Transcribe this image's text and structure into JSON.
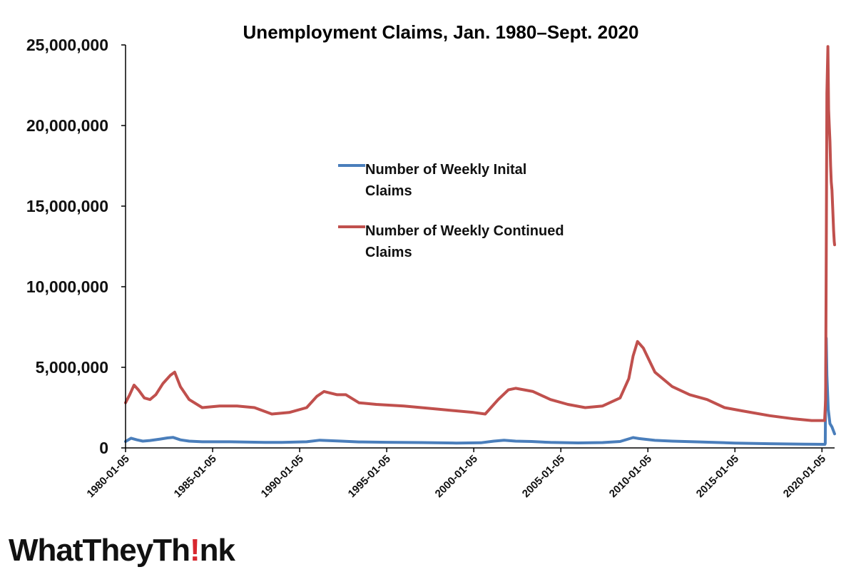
{
  "logo": {
    "text_before": "WhatTheyTh",
    "bang": "!",
    "text_after": "nk",
    "accent_color": "#d8272e"
  },
  "chart_data": {
    "type": "line",
    "title": "Unemployment Claims, Jan. 1980–Sept. 2020",
    "xlabel": "",
    "ylabel": "",
    "ylim": [
      0,
      25000000
    ],
    "yticks": [
      0,
      5000000,
      10000000,
      15000000,
      20000000,
      25000000
    ],
    "ytick_labels": [
      "0",
      "5,000,000",
      "10,000,000",
      "15,000,000",
      "20,000,000",
      "25,000,000"
    ],
    "xlim": [
      "1980-01-05",
      "2020-09-26"
    ],
    "xtick_labels": [
      "1980-01-05",
      "1985-01-05",
      "1990-01-05",
      "1995-01-05",
      "2000-01-05",
      "2005-01-05",
      "2010-01-05",
      "2015-01-05",
      "2020-01-05"
    ],
    "grid": false,
    "legend_position": "upper-center",
    "series": [
      {
        "name": "Number of Weekly Inital Claims",
        "legend_lines": [
          "Number of Weekly Inital",
          "Claims"
        ],
        "color": "#4a7ebb",
        "x": [
          "1980-01-05",
          "1980-05-01",
          "1980-09-01",
          "1981-01-01",
          "1981-06-01",
          "1982-01-01",
          "1982-06-01",
          "1982-10-01",
          "1983-03-01",
          "1983-09-01",
          "1984-06-01",
          "1986-01-01",
          "1988-01-01",
          "1989-01-01",
          "1990-06-01",
          "1991-03-01",
          "1991-09-01",
          "1992-06-01",
          "1993-06-01",
          "1995-01-01",
          "1997-01-01",
          "1999-01-01",
          "2000-06-01",
          "2001-03-01",
          "2001-10-01",
          "2002-06-01",
          "2003-05-01",
          "2004-06-01",
          "2006-01-01",
          "2007-06-01",
          "2008-06-01",
          "2009-03-01",
          "2009-07-01",
          "2010-06-01",
          "2011-06-01",
          "2013-01-01",
          "2015-01-01",
          "2017-01-01",
          "2019-01-01",
          "2020-03-07",
          "2020-03-14",
          "2020-03-21",
          "2020-03-28",
          "2020-04-04",
          "2020-04-18",
          "2020-05-16",
          "2020-06-20",
          "2020-08-01",
          "2020-09-26"
        ],
        "values": [
          400000,
          600000,
          500000,
          420000,
          460000,
          550000,
          620000,
          650000,
          500000,
          420000,
          380000,
          380000,
          340000,
          340000,
          380000,
          480000,
          450000,
          420000,
          370000,
          350000,
          330000,
          300000,
          320000,
          420000,
          480000,
          420000,
          400000,
          340000,
          310000,
          330000,
          400000,
          640000,
          580000,
          470000,
          420000,
          370000,
          300000,
          260000,
          230000,
          220000,
          280000,
          3300000,
          5000000,
          6800000,
          4500000,
          2400000,
          1500000,
          1300000,
          870000
        ]
      },
      {
        "name": "Number of Weekly Continued Claims",
        "legend_lines": [
          "Number of Weekly Continued",
          "Claims"
        ],
        "color": "#c0504d",
        "x": [
          "1980-01-05",
          "1980-04-01",
          "1980-07-01",
          "1980-10-01",
          "1981-02-01",
          "1981-06-01",
          "1981-10-01",
          "1982-03-01",
          "1982-08-01",
          "1982-11-01",
          "1983-03-01",
          "1983-09-01",
          "1984-06-01",
          "1985-06-01",
          "1986-06-01",
          "1987-06-01",
          "1988-06-01",
          "1989-06-01",
          "1990-06-01",
          "1991-01-01",
          "1991-06-01",
          "1992-03-01",
          "1992-09-01",
          "1993-06-01",
          "1994-06-01",
          "1996-01-01",
          "1998-01-01",
          "2000-01-01",
          "2000-09-01",
          "2001-06-01",
          "2002-01-01",
          "2002-06-01",
          "2003-06-01",
          "2004-06-01",
          "2005-06-01",
          "2006-06-01",
          "2007-06-01",
          "2008-06-01",
          "2008-12-01",
          "2009-03-01",
          "2009-06-01",
          "2009-10-01",
          "2010-06-01",
          "2011-06-01",
          "2012-06-01",
          "2013-06-01",
          "2014-06-01",
          "2015-06-01",
          "2017-01-01",
          "2018-06-01",
          "2019-06-01",
          "2020-02-29",
          "2020-03-21",
          "2020-04-04",
          "2020-04-18",
          "2020-05-09",
          "2020-05-23",
          "2020-06-06",
          "2020-06-20",
          "2020-07-04",
          "2020-07-18",
          "2020-08-01",
          "2020-08-22",
          "2020-09-05",
          "2020-09-19",
          "2020-09-26"
        ],
        "values": [
          2800000,
          3300000,
          3900000,
          3600000,
          3100000,
          3000000,
          3300000,
          4000000,
          4500000,
          4700000,
          3800000,
          3000000,
          2500000,
          2600000,
          2600000,
          2500000,
          2100000,
          2200000,
          2500000,
          3200000,
          3500000,
          3300000,
          3300000,
          2800000,
          2700000,
          2600000,
          2400000,
          2200000,
          2100000,
          3000000,
          3600000,
          3700000,
          3500000,
          3000000,
          2700000,
          2500000,
          2600000,
          3100000,
          4300000,
          5700000,
          6600000,
          6200000,
          4700000,
          3800000,
          3300000,
          3000000,
          2500000,
          2300000,
          2000000,
          1800000,
          1700000,
          1700000,
          3000000,
          12000000,
          22000000,
          24900000,
          21000000,
          20000000,
          19000000,
          17500000,
          16500000,
          16000000,
          14500000,
          13500000,
          12800000,
          12600000
        ]
      }
    ]
  }
}
